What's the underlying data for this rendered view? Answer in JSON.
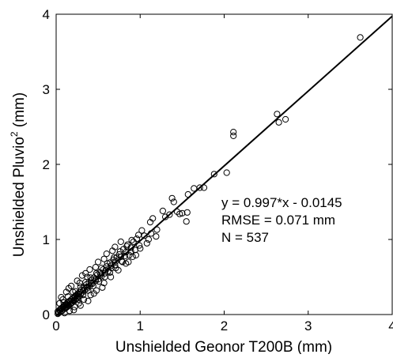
{
  "chart_data": {
    "type": "scatter",
    "xlabel": "Unshielded Geonor T200B (mm)",
    "ylabel": "Unshielded Pluvio",
    "ylabel_sup": "2",
    "ylabel_unit": " (mm)",
    "xlim": [
      0,
      4
    ],
    "ylim": [
      0,
      4
    ],
    "xticks": [
      "0",
      "1",
      "2",
      "3",
      "4"
    ],
    "yticks": [
      "0",
      "1",
      "2",
      "3",
      "4"
    ],
    "grid": false,
    "marker": "open-circle",
    "colors": {
      "marker": "#000000",
      "line": "#000000",
      "axes": "#000000"
    },
    "fit_line": {
      "slope": 0.997,
      "intercept": -0.0145
    },
    "annotations": [
      "y = 0.997*x - 0.0145",
      "RMSE = 0.071 mm",
      "N = 537"
    ],
    "series": [
      {
        "points": [
          [
            3.62,
            3.69
          ],
          [
            2.73,
            2.6
          ],
          [
            2.63,
            2.67
          ],
          [
            2.65,
            2.56
          ],
          [
            2.11,
            2.43
          ],
          [
            2.11,
            2.38
          ],
          [
            2.03,
            1.89
          ],
          [
            1.88,
            1.87
          ],
          [
            1.76,
            1.69
          ],
          [
            1.71,
            1.69
          ],
          [
            1.64,
            1.68
          ],
          [
            1.57,
            1.6
          ],
          [
            1.56,
            1.36
          ],
          [
            1.5,
            1.35
          ],
          [
            1.55,
            1.24
          ],
          [
            1.47,
            1.34
          ],
          [
            1.44,
            1.37
          ],
          [
            1.4,
            1.5
          ],
          [
            1.38,
            1.55
          ],
          [
            1.35,
            1.33
          ],
          [
            1.3,
            1.3
          ],
          [
            1.27,
            1.38
          ],
          [
            1.2,
            1.13
          ],
          [
            1.15,
            1.28
          ],
          [
            1.12,
            1.23
          ],
          [
            1.05,
            1.05
          ],
          [
            1.02,
            1.12
          ],
          [
            0.99,
            0.92
          ],
          [
            0.96,
            1.01
          ],
          [
            0.92,
            0.97
          ],
          [
            0.89,
            0.84
          ],
          [
            0.85,
            0.93
          ],
          [
            0.82,
            0.78
          ],
          [
            0.8,
            0.87
          ],
          [
            0.78,
            0.71
          ],
          [
            0.75,
            0.8
          ],
          [
            0.72,
            0.76
          ],
          [
            0.7,
            0.66
          ],
          [
            0.68,
            0.73
          ],
          [
            0.66,
            0.62
          ],
          [
            0.64,
            0.69
          ],
          [
            0.62,
            0.58
          ],
          [
            0.6,
            0.64
          ],
          [
            0.58,
            0.55
          ],
          [
            0.56,
            0.6
          ],
          [
            0.54,
            0.51
          ],
          [
            0.52,
            0.56
          ],
          [
            0.5,
            0.47
          ],
          [
            0.49,
            0.53
          ],
          [
            0.47,
            0.45
          ],
          [
            0.45,
            0.49
          ],
          [
            0.43,
            0.41
          ],
          [
            0.42,
            0.46
          ],
          [
            0.4,
            0.38
          ],
          [
            0.39,
            0.43
          ],
          [
            0.37,
            0.35
          ],
          [
            0.36,
            0.4
          ],
          [
            0.34,
            0.32
          ],
          [
            0.33,
            0.36
          ],
          [
            0.31,
            0.29
          ],
          [
            0.3,
            0.33
          ],
          [
            0.29,
            0.27
          ],
          [
            0.28,
            0.3
          ],
          [
            0.27,
            0.24
          ],
          [
            0.26,
            0.28
          ],
          [
            0.25,
            0.22
          ],
          [
            0.24,
            0.26
          ],
          [
            0.23,
            0.2
          ],
          [
            0.22,
            0.24
          ],
          [
            0.21,
            0.18
          ],
          [
            0.2,
            0.22
          ],
          [
            0.19,
            0.16
          ],
          [
            0.18,
            0.2
          ],
          [
            0.17,
            0.14
          ],
          [
            0.16,
            0.18
          ],
          [
            0.15,
            0.12
          ],
          [
            0.14,
            0.16
          ],
          [
            0.13,
            0.1
          ],
          [
            0.12,
            0.14
          ],
          [
            0.11,
            0.08
          ],
          [
            0.1,
            0.12
          ],
          [
            0.09,
            0.07
          ],
          [
            0.08,
            0.1
          ],
          [
            0.07,
            0.05
          ],
          [
            0.06,
            0.08
          ],
          [
            0.05,
            0.04
          ],
          [
            0.04,
            0.06
          ],
          [
            0.03,
            0.03
          ],
          [
            0.02,
            0.04
          ],
          [
            0.02,
            0.01
          ],
          [
            0.06,
            0.23
          ],
          [
            0.15,
            0.35
          ],
          [
            0.31,
            0.52
          ],
          [
            0.38,
            0.18
          ],
          [
            0.21,
            0.06
          ],
          [
            0.29,
            0.12
          ],
          [
            0.45,
            0.28
          ],
          [
            0.55,
            0.36
          ],
          [
            0.86,
            0.7
          ],
          [
            0.95,
            0.79
          ],
          [
            1.1,
            1.0
          ],
          [
            0.7,
            0.9
          ],
          [
            0.6,
            0.81
          ],
          [
            0.5,
            0.7
          ],
          [
            0.4,
            0.6
          ],
          [
            0.35,
            0.55
          ],
          [
            0.25,
            0.45
          ],
          [
            0.18,
            0.38
          ],
          [
            0.12,
            0.3
          ],
          [
            0.08,
            0.2
          ],
          [
            0.04,
            0.15
          ],
          [
            0.1,
            0.02
          ],
          [
            0.16,
            0.05
          ],
          [
            0.22,
            0.1
          ],
          [
            0.27,
            0.15
          ],
          [
            0.33,
            0.2
          ],
          [
            0.41,
            0.26
          ],
          [
            0.48,
            0.32
          ],
          [
            0.57,
            0.42
          ],
          [
            0.65,
            0.5
          ],
          [
            0.74,
            0.59
          ],
          [
            0.83,
            0.68
          ],
          [
            0.91,
            0.77
          ],
          [
            1.0,
            0.88
          ],
          [
            1.08,
            0.95
          ],
          [
            0.77,
            0.97
          ],
          [
            0.67,
            0.85
          ],
          [
            0.57,
            0.74
          ],
          [
            0.47,
            0.63
          ],
          [
            0.37,
            0.5
          ],
          [
            0.28,
            0.42
          ],
          [
            0.2,
            0.3
          ],
          [
            0.14,
            0.24
          ],
          [
            0.09,
            0.16
          ],
          [
            1.13,
            1.08
          ],
          [
            1.19,
            1.04
          ],
          [
            0.26,
            0.2
          ],
          [
            0.32,
            0.26
          ],
          [
            0.38,
            0.32
          ],
          [
            0.44,
            0.38
          ],
          [
            0.51,
            0.44
          ],
          [
            0.58,
            0.5
          ],
          [
            0.64,
            0.56
          ],
          [
            0.71,
            0.62
          ],
          [
            0.79,
            0.7
          ],
          [
            0.87,
            0.79
          ],
          [
            0.94,
            0.86
          ],
          [
            0.23,
            0.31
          ],
          [
            0.29,
            0.37
          ],
          [
            0.35,
            0.43
          ],
          [
            0.41,
            0.49
          ],
          [
            0.48,
            0.55
          ],
          [
            0.54,
            0.62
          ],
          [
            0.61,
            0.68
          ],
          [
            0.69,
            0.76
          ],
          [
            0.76,
            0.84
          ],
          [
            0.84,
            0.91
          ],
          [
            0.9,
            0.99
          ],
          [
            0.98,
            1.06
          ],
          [
            0.13,
            0.13
          ],
          [
            0.17,
            0.17
          ],
          [
            0.22,
            0.22
          ],
          [
            0.27,
            0.27
          ],
          [
            0.32,
            0.32
          ],
          [
            0.37,
            0.37
          ],
          [
            0.42,
            0.42
          ],
          [
            0.47,
            0.47
          ],
          [
            0.53,
            0.53
          ],
          [
            0.59,
            0.59
          ],
          [
            0.65,
            0.65
          ],
          [
            0.71,
            0.71
          ],
          [
            0.77,
            0.77
          ],
          [
            0.83,
            0.83
          ],
          [
            0.89,
            0.89
          ],
          [
            0.11,
            0.09
          ],
          [
            0.14,
            0.11
          ],
          [
            0.18,
            0.15
          ],
          [
            0.21,
            0.19
          ],
          [
            0.24,
            0.21
          ],
          [
            0.07,
            0.09
          ],
          [
            0.05,
            0.07
          ],
          [
            0.03,
            0.02
          ],
          [
            0.09,
            0.11
          ],
          [
            0.12,
            0.1
          ]
        ]
      }
    ]
  }
}
